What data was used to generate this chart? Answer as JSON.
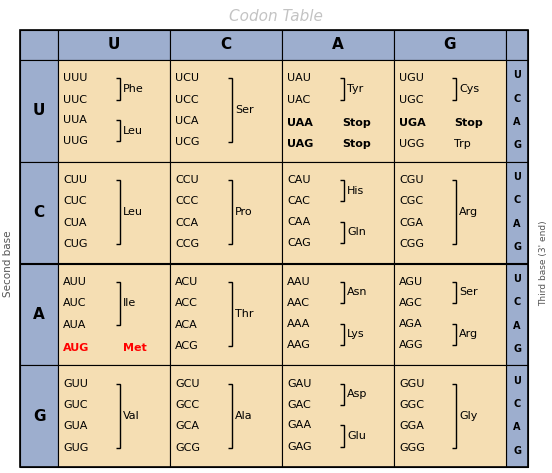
{
  "title": "Codon Table",
  "title_color": "#aaaaaa",
  "header_bg": "#9daece",
  "cell_bg": "#f5deb3",
  "last_col_bg": "#9daece",
  "col_headers": [
    "U",
    "C",
    "A",
    "G"
  ],
  "row_headers": [
    "U",
    "C",
    "A",
    "G"
  ],
  "right_labels": [
    "U",
    "C",
    "A",
    "G"
  ],
  "cells": [
    [
      {
        "lines": [
          [
            "UUU",
            "UUC"
          ],
          "Phe",
          [
            "UUA",
            "UUG"
          ],
          "Leu"
        ],
        "type": "2x2"
      },
      {
        "lines": [
          [
            "UCU",
            "UCC",
            "UCA",
            "UCG"
          ],
          "Ser"
        ],
        "type": "4x1"
      },
      {
        "lines": [
          [
            "UAU",
            "UAC"
          ],
          "Tyr",
          [
            "UAA",
            "Stop"
          ],
          [
            "UAG",
            "Stop"
          ]
        ],
        "type": "uag"
      },
      {
        "lines": [
          [
            "UGU",
            "UGC"
          ],
          "Cys",
          [
            "UGA",
            "Stop"
          ],
          [
            "UGG",
            "Trp"
          ]
        ],
        "type": "uga"
      }
    ],
    [
      {
        "lines": [
          [
            "CUU",
            "CUC",
            "CUA",
            "CUG"
          ],
          "Leu"
        ],
        "type": "4x1"
      },
      {
        "lines": [
          [
            "CCU",
            "CCC",
            "CCA",
            "CCG"
          ],
          "Pro"
        ],
        "type": "4x1"
      },
      {
        "lines": [
          [
            "CAU",
            "CAC"
          ],
          "His",
          [
            "CAA",
            "CAG"
          ],
          "Gln"
        ],
        "type": "2x2"
      },
      {
        "lines": [
          [
            "CGU",
            "CGC",
            "CGA",
            "CGG"
          ],
          "Arg"
        ],
        "type": "4x1"
      }
    ],
    [
      {
        "lines": [
          [
            "AUU",
            "AUC",
            "AUA"
          ],
          "Ile",
          [
            "AUG"
          ],
          "Met"
        ],
        "type": "3aug"
      },
      {
        "lines": [
          [
            "ACU",
            "ACC",
            "ACA",
            "ACG"
          ],
          "Thr"
        ],
        "type": "4x1"
      },
      {
        "lines": [
          [
            "AAU",
            "AAC"
          ],
          "Asn",
          [
            "AAA",
            "AAG"
          ],
          "Lys"
        ],
        "type": "2x2"
      },
      {
        "lines": [
          [
            "AGU",
            "AGC"
          ],
          "Ser",
          [
            "AGA",
            "AGG"
          ],
          "Arg"
        ],
        "type": "2x2"
      }
    ],
    [
      {
        "lines": [
          [
            "GUU",
            "GUC",
            "GUA",
            "GUG"
          ],
          "Val"
        ],
        "type": "4x1"
      },
      {
        "lines": [
          [
            "GCU",
            "GCC",
            "GCA",
            "GCG"
          ],
          "Ala"
        ],
        "type": "4x1"
      },
      {
        "lines": [
          [
            "GAU",
            "GAC"
          ],
          "Asp",
          [
            "GAA",
            "GAG"
          ],
          "Glu"
        ],
        "type": "2x2"
      },
      {
        "lines": [
          [
            "GGU",
            "GGC",
            "GGA",
            "GGG"
          ],
          "Gly"
        ],
        "type": "4x1"
      }
    ]
  ]
}
